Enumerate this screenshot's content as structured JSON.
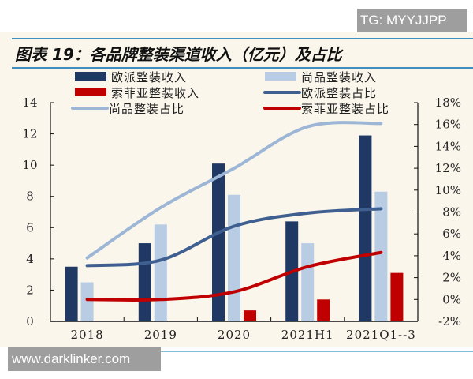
{
  "watermark_top": "TG: MYYJJPP",
  "watermark_bottom": "www.darklinker.com",
  "chart_data": {
    "type": "bar+line",
    "title": "图表 19：各品牌整装渠道收入（亿元）及占比",
    "categories": [
      "2018",
      "2019",
      "2020",
      "2021H1",
      "2021Q1--3"
    ],
    "left_axis": {
      "ylim": [
        0,
        14
      ],
      "ticks": [
        "0",
        "2",
        "4",
        "6",
        "8",
        "10",
        "12",
        "14"
      ]
    },
    "right_axis": {
      "ylim": [
        -2,
        18
      ],
      "ticks": [
        "-2%",
        "0%",
        "2%",
        "4%",
        "6%",
        "8%",
        "10%",
        "12%",
        "14%",
        "16%",
        "18%"
      ]
    },
    "bar_series": [
      {
        "name": "欧派整装收入",
        "color": "#1f3864",
        "values": [
          3.5,
          5.0,
          10.1,
          6.4,
          11.9
        ]
      },
      {
        "name": "尚品整装收入",
        "color": "#b8cce4",
        "values": [
          2.5,
          6.2,
          8.1,
          5.0,
          8.3
        ]
      },
      {
        "name": "索菲亚整装收入",
        "color": "#c00000",
        "values": [
          null,
          null,
          0.7,
          1.4,
          3.1
        ]
      }
    ],
    "line_series": [
      {
        "name": "欧派整装占比",
        "color": "#3e5f8f",
        "values": [
          3.1,
          3.6,
          6.7,
          7.9,
          8.3
        ]
      },
      {
        "name": "尚品整装占比",
        "color": "#9db6d6",
        "values": [
          3.8,
          8.4,
          12.0,
          15.8,
          16.1
        ]
      },
      {
        "name": "索菲亚整装占比",
        "color": "#c00000",
        "values": [
          0.0,
          0.0,
          0.7,
          3.0,
          4.3
        ]
      }
    ],
    "legend_position": "top",
    "grid": false
  }
}
